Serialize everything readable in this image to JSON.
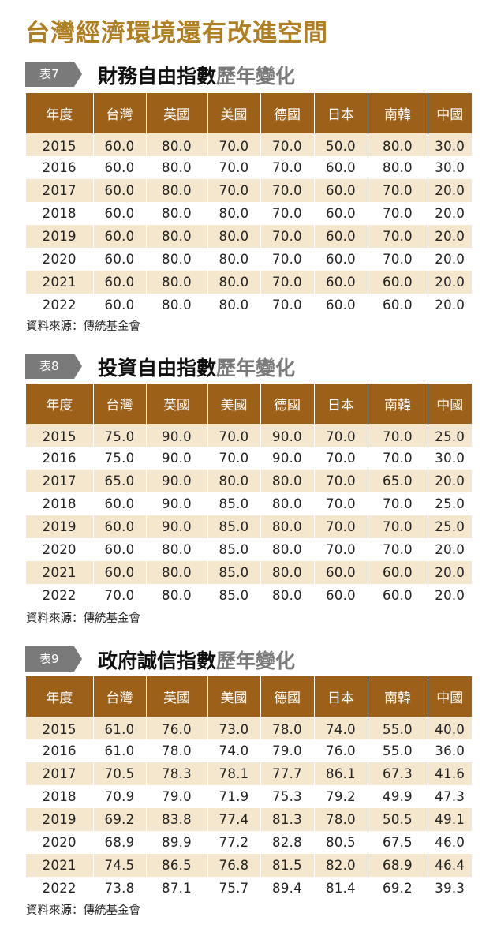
{
  "title": "台灣經濟環境還有改進空間",
  "source_label": "資料來源：傳統基金會",
  "columns": [
    "年度",
    "台灣",
    "英國",
    "美國",
    "德國",
    "日本",
    "南韓",
    "中國"
  ],
  "tables": [
    {
      "badge": "表7",
      "title_main": "財務自由指數",
      "title_suffix": "歷年變化",
      "rows": [
        [
          "2015",
          "60.0",
          "80.0",
          "70.0",
          "70.0",
          "50.0",
          "80.0",
          "30.0"
        ],
        [
          "2016",
          "60.0",
          "80.0",
          "70.0",
          "70.0",
          "60.0",
          "80.0",
          "30.0"
        ],
        [
          "2017",
          "60.0",
          "80.0",
          "70.0",
          "70.0",
          "60.0",
          "70.0",
          "20.0"
        ],
        [
          "2018",
          "60.0",
          "80.0",
          "80.0",
          "70.0",
          "60.0",
          "70.0",
          "20.0"
        ],
        [
          "2019",
          "60.0",
          "80.0",
          "80.0",
          "70.0",
          "60.0",
          "70.0",
          "20.0"
        ],
        [
          "2020",
          "60.0",
          "80.0",
          "80.0",
          "70.0",
          "60.0",
          "70.0",
          "20.0"
        ],
        [
          "2021",
          "60.0",
          "80.0",
          "80.0",
          "70.0",
          "60.0",
          "60.0",
          "20.0"
        ],
        [
          "2022",
          "60.0",
          "80.0",
          "80.0",
          "70.0",
          "60.0",
          "60.0",
          "20.0"
        ]
      ]
    },
    {
      "badge": "表8",
      "title_main": "投資自由指數",
      "title_suffix": "歷年變化",
      "rows": [
        [
          "2015",
          "75.0",
          "90.0",
          "70.0",
          "90.0",
          "70.0",
          "70.0",
          "25.0"
        ],
        [
          "2016",
          "75.0",
          "90.0",
          "70.0",
          "90.0",
          "70.0",
          "70.0",
          "30.0"
        ],
        [
          "2017",
          "65.0",
          "90.0",
          "80.0",
          "80.0",
          "70.0",
          "65.0",
          "20.0"
        ],
        [
          "2018",
          "60.0",
          "90.0",
          "85.0",
          "80.0",
          "70.0",
          "70.0",
          "25.0"
        ],
        [
          "2019",
          "60.0",
          "90.0",
          "85.0",
          "80.0",
          "70.0",
          "70.0",
          "25.0"
        ],
        [
          "2020",
          "60.0",
          "80.0",
          "85.0",
          "80.0",
          "70.0",
          "70.0",
          "20.0"
        ],
        [
          "2021",
          "60.0",
          "80.0",
          "85.0",
          "80.0",
          "60.0",
          "60.0",
          "20.0"
        ],
        [
          "2022",
          "70.0",
          "80.0",
          "85.0",
          "80.0",
          "60.0",
          "60.0",
          "20.0"
        ]
      ]
    },
    {
      "badge": "表9",
      "title_main": "政府誠信指數",
      "title_suffix": "歷年變化",
      "rows": [
        [
          "2015",
          "61.0",
          "76.0",
          "73.0",
          "78.0",
          "74.0",
          "55.0",
          "40.0"
        ],
        [
          "2016",
          "61.0",
          "78.0",
          "74.0",
          "79.0",
          "76.0",
          "55.0",
          "36.0"
        ],
        [
          "2017",
          "70.5",
          "78.3",
          "78.1",
          "77.7",
          "86.1",
          "67.3",
          "41.6"
        ],
        [
          "2018",
          "70.9",
          "79.0",
          "71.9",
          "75.3",
          "79.2",
          "49.9",
          "47.3"
        ],
        [
          "2019",
          "69.2",
          "83.8",
          "77.4",
          "81.3",
          "78.0",
          "50.5",
          "49.1"
        ],
        [
          "2020",
          "68.9",
          "89.9",
          "77.2",
          "82.8",
          "80.5",
          "67.5",
          "46.0"
        ],
        [
          "2021",
          "74.5",
          "86.5",
          "76.8",
          "81.5",
          "82.0",
          "68.9",
          "46.4"
        ],
        [
          "2022",
          "73.8",
          "87.1",
          "75.7",
          "89.4",
          "81.4",
          "69.2",
          "39.3"
        ]
      ]
    }
  ],
  "chart_data": [
    {
      "type": "table",
      "title": "財務自由指數歷年變化",
      "x": [
        2015,
        2016,
        2017,
        2018,
        2019,
        2020,
        2021,
        2022
      ],
      "series": [
        {
          "name": "台灣",
          "values": [
            60.0,
            60.0,
            60.0,
            60.0,
            60.0,
            60.0,
            60.0,
            60.0
          ]
        },
        {
          "name": "英國",
          "values": [
            80.0,
            80.0,
            80.0,
            80.0,
            80.0,
            80.0,
            80.0,
            80.0
          ]
        },
        {
          "name": "美國",
          "values": [
            70.0,
            70.0,
            70.0,
            80.0,
            80.0,
            80.0,
            80.0,
            80.0
          ]
        },
        {
          "name": "德國",
          "values": [
            70.0,
            70.0,
            70.0,
            70.0,
            70.0,
            70.0,
            70.0,
            70.0
          ]
        },
        {
          "name": "日本",
          "values": [
            50.0,
            60.0,
            60.0,
            60.0,
            60.0,
            60.0,
            60.0,
            60.0
          ]
        },
        {
          "name": "南韓",
          "values": [
            80.0,
            80.0,
            70.0,
            70.0,
            70.0,
            70.0,
            60.0,
            60.0
          ]
        },
        {
          "name": "中國",
          "values": [
            30.0,
            30.0,
            20.0,
            20.0,
            20.0,
            20.0,
            20.0,
            20.0
          ]
        }
      ]
    },
    {
      "type": "table",
      "title": "投資自由指數歷年變化",
      "x": [
        2015,
        2016,
        2017,
        2018,
        2019,
        2020,
        2021,
        2022
      ],
      "series": [
        {
          "name": "台灣",
          "values": [
            75.0,
            75.0,
            65.0,
            60.0,
            60.0,
            60.0,
            60.0,
            70.0
          ]
        },
        {
          "name": "英國",
          "values": [
            90.0,
            90.0,
            90.0,
            90.0,
            90.0,
            80.0,
            80.0,
            80.0
          ]
        },
        {
          "name": "美國",
          "values": [
            70.0,
            70.0,
            80.0,
            85.0,
            85.0,
            85.0,
            85.0,
            85.0
          ]
        },
        {
          "name": "德國",
          "values": [
            90.0,
            90.0,
            80.0,
            80.0,
            80.0,
            80.0,
            80.0,
            80.0
          ]
        },
        {
          "name": "日本",
          "values": [
            70.0,
            70.0,
            70.0,
            70.0,
            70.0,
            70.0,
            60.0,
            60.0
          ]
        },
        {
          "name": "南韓",
          "values": [
            70.0,
            70.0,
            65.0,
            70.0,
            70.0,
            70.0,
            60.0,
            60.0
          ]
        },
        {
          "name": "中國",
          "values": [
            25.0,
            30.0,
            20.0,
            25.0,
            25.0,
            20.0,
            20.0,
            20.0
          ]
        }
      ]
    },
    {
      "type": "table",
      "title": "政府誠信指數歷年變化",
      "x": [
        2015,
        2016,
        2017,
        2018,
        2019,
        2020,
        2021,
        2022
      ],
      "series": [
        {
          "name": "台灣",
          "values": [
            61.0,
            61.0,
            70.5,
            70.9,
            69.2,
            68.9,
            74.5,
            73.8
          ]
        },
        {
          "name": "英國",
          "values": [
            76.0,
            78.0,
            78.3,
            79.0,
            83.8,
            89.9,
            86.5,
            87.1
          ]
        },
        {
          "name": "美國",
          "values": [
            73.0,
            74.0,
            78.1,
            71.9,
            77.4,
            77.2,
            76.8,
            75.7
          ]
        },
        {
          "name": "德國",
          "values": [
            78.0,
            79.0,
            77.7,
            75.3,
            81.3,
            82.8,
            81.5,
            89.4
          ]
        },
        {
          "name": "日本",
          "values": [
            74.0,
            76.0,
            86.1,
            79.2,
            78.0,
            80.5,
            82.0,
            81.4
          ]
        },
        {
          "name": "南韓",
          "values": [
            55.0,
            55.0,
            67.3,
            49.9,
            50.5,
            67.5,
            68.9,
            69.2
          ]
        },
        {
          "name": "中國",
          "values": [
            40.0,
            36.0,
            41.6,
            47.3,
            49.1,
            46.0,
            46.4,
            39.3
          ]
        }
      ]
    }
  ]
}
